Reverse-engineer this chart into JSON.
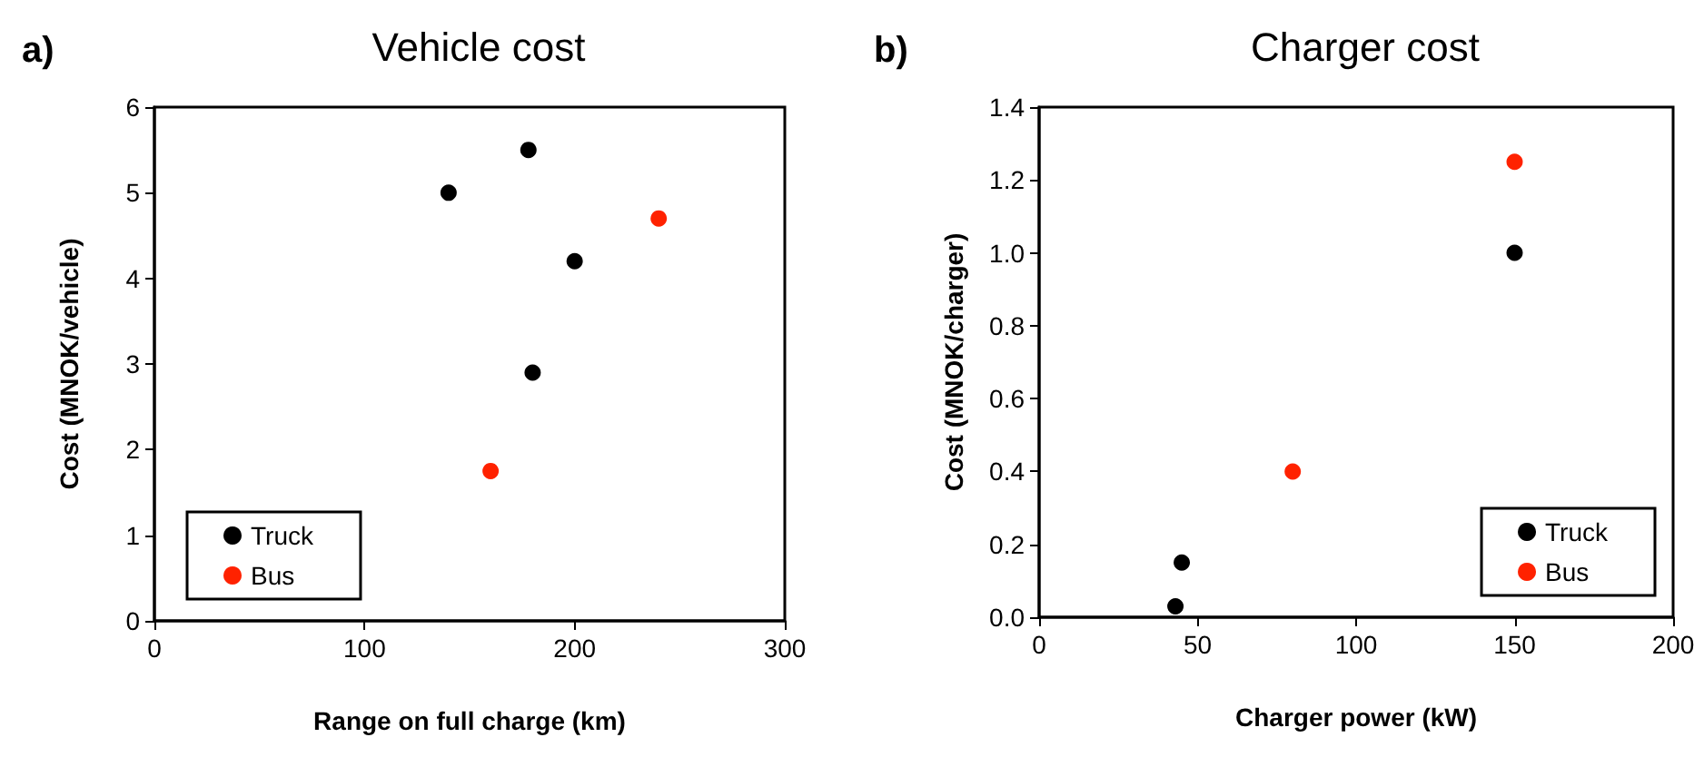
{
  "chart_data": [
    {
      "type": "scatter",
      "title": "Vehicle cost",
      "xlabel": "Range on full charge (km)",
      "ylabel": "Cost (MNOK/vehicle)",
      "annotations": [
        "a)"
      ],
      "series": [
        {
          "name": "Truck",
          "color": "#000000",
          "x": [
            140,
            178,
            200,
            180
          ],
          "values": [
            5.0,
            5.5,
            4.2,
            2.9
          ]
        },
        {
          "name": "Bus",
          "color": "#ff2200",
          "x": [
            160,
            240
          ],
          "values": [
            1.75,
            4.7
          ]
        }
      ],
      "xlim": [
        0,
        300
      ],
      "xticks": [
        0,
        100,
        200,
        300
      ],
      "ylim": [
        0,
        6
      ],
      "yticks": [
        0,
        1,
        2,
        3,
        4,
        5,
        6
      ],
      "grid": false,
      "legend": "bottom left",
      "marker": "circle"
    },
    {
      "type": "scatter",
      "title": "Charger cost",
      "xlabel": "Charger power (kW)",
      "ylabel": "Cost (MNOK/charger)",
      "annotations": [
        "b)"
      ],
      "series": [
        {
          "name": "Truck",
          "color": "#000000",
          "x": [
            43,
            45,
            150
          ],
          "values": [
            0.03,
            0.15,
            1.0
          ]
        },
        {
          "name": "Bus",
          "color": "#ff2200",
          "x": [
            80,
            150
          ],
          "values": [
            0.4,
            1.25
          ]
        }
      ],
      "xlim": [
        0,
        200
      ],
      "xticks": [
        0,
        50,
        100,
        150,
        200
      ],
      "ylim": [
        0,
        1.4
      ],
      "yticks": [
        {
          "value": 0,
          "label": "0.0"
        },
        0.2,
        0.4,
        0.6,
        0.8,
        {
          "value": 1,
          "label": "1.0"
        },
        1.2,
        1.4
      ],
      "grid": false,
      "legend": "bottom right",
      "marker": "circle"
    }
  ]
}
